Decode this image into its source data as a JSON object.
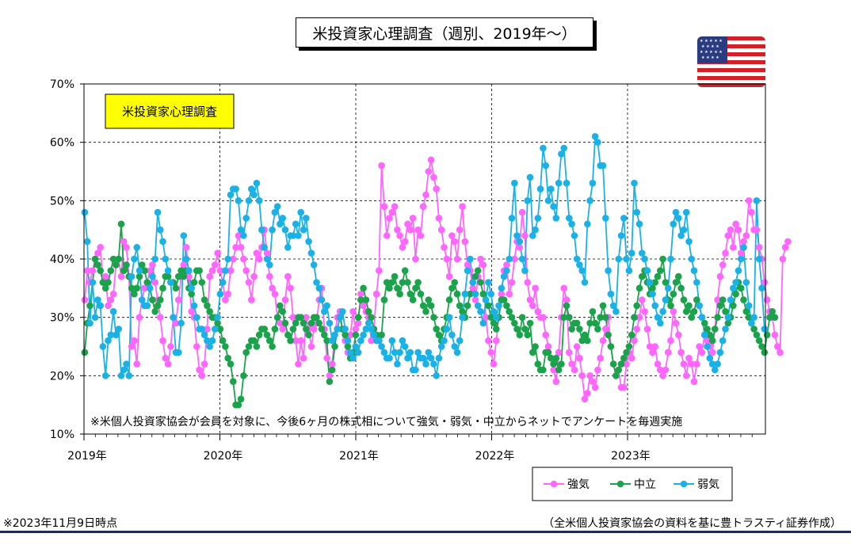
{
  "title": "米投資家心理調査（週別、2019年〜）",
  "inner_label": "米投資家心理調査",
  "chart_note": "※米個人投資家協会が会員を対象に、今後6ヶ月の株式相について強気・弱気・中立からネットでアンケートを毎週実施",
  "as_of": "※2023年11月9日時点",
  "source": "（全米個人投資家協会の資料を基に豊トラスティ証券作成）",
  "flag_icon": "us-flag-icon",
  "chart_data": {
    "type": "line",
    "title": "米投資家心理調査（週別、2019年〜）",
    "xlabel": "",
    "ylabel": "",
    "x_start": "2019-01-03",
    "x_end": "2023-11-09",
    "x_interval": "weekly",
    "x_ticks": [
      "2019年",
      "2020年",
      "2021年",
      "2022年",
      "2023年"
    ],
    "y_ticks": [
      "10%",
      "20%",
      "30%",
      "40%",
      "50%",
      "60%",
      "70%"
    ],
    "ylim": [
      10,
      70
    ],
    "grid": "dashed horizontal and vertical",
    "legend_position": "bottom-right",
    "series": [
      {
        "name": "強気",
        "color": "#ff66ff",
        "values": [
          33,
          38,
          36,
          38,
          40,
          41,
          42,
          36,
          37,
          32,
          33,
          34,
          39,
          40,
          37,
          43,
          42,
          37,
          25,
          26,
          22,
          30,
          33,
          35,
          36,
          38,
          39,
          36,
          33,
          30,
          26,
          23,
          22,
          25,
          30,
          29,
          33,
          37,
          39,
          42,
          37,
          31,
          30,
          25,
          21,
          20,
          22,
          28,
          37,
          38,
          39,
          41,
          38,
          36,
          33,
          34,
          38,
          40,
          42,
          44,
          42,
          40,
          38,
          36,
          33,
          37,
          41,
          40,
          42,
          45,
          41,
          37,
          35,
          34,
          30,
          29,
          28,
          33,
          37,
          35,
          30,
          26,
          22,
          26,
          23,
          30,
          28,
          25,
          28,
          29,
          33,
          35,
          28,
          23,
          20,
          22,
          27,
          30,
          31,
          28,
          26,
          24,
          27,
          31,
          28,
          29,
          34,
          32,
          31,
          30,
          26,
          28,
          34,
          38,
          56,
          49,
          44,
          47,
          48,
          49,
          45,
          44,
          42,
          43,
          46,
          45,
          47,
          40,
          45,
          44,
          49,
          51,
          55,
          57,
          54,
          52,
          47,
          45,
          42,
          40,
          37,
          44,
          43,
          40,
          45,
          49,
          43,
          39,
          38,
          35,
          33,
          37,
          40,
          39,
          30,
          26,
          24,
          22,
          26,
          30,
          34,
          38,
          39,
          34,
          36,
          40,
          43,
          42,
          48,
          44,
          36,
          33,
          32,
          35,
          31,
          30,
          30,
          27,
          25,
          23,
          21,
          19,
          24,
          30,
          35,
          33,
          24,
          22,
          21,
          25,
          23,
          20,
          16,
          17,
          20,
          19,
          18,
          21,
          23,
          26,
          28,
          30,
          25,
          22,
          20,
          21,
          18,
          18,
          22,
          24,
          23,
          26,
          28,
          30,
          33,
          31,
          28,
          25,
          24,
          25,
          22,
          21,
          20,
          21,
          24,
          26,
          31,
          29,
          27,
          24,
          22,
          20,
          23,
          22,
          19,
          22,
          25,
          24,
          27,
          26,
          25,
          24,
          28,
          33,
          37,
          39,
          41,
          44,
          45,
          42,
          46,
          45,
          41,
          43,
          44,
          50,
          48,
          45,
          45,
          42,
          40,
          36,
          33,
          31,
          30,
          27,
          25,
          24,
          40,
          42,
          43
        ]
      },
      {
        "name": "中立",
        "color": "#1aa34a",
        "values": [
          24,
          29,
          32,
          36,
          40,
          39,
          38,
          36,
          35,
          36,
          38,
          40,
          39,
          40,
          46,
          38,
          39,
          37,
          35,
          34,
          35,
          37,
          39,
          38,
          36,
          35,
          33,
          31,
          32,
          33,
          35,
          37,
          37,
          36,
          36,
          35,
          37,
          38,
          37,
          38,
          35,
          34,
          36,
          38,
          38,
          36,
          33,
          32,
          31,
          30,
          30,
          29,
          28,
          26,
          25,
          23,
          22,
          19,
          15,
          15,
          16,
          20,
          24,
          25,
          26,
          26,
          25,
          27,
          28,
          28,
          27,
          26,
          25,
          28,
          30,
          32,
          31,
          29,
          27,
          26,
          28,
          29,
          30,
          30,
          29,
          28,
          27,
          29,
          30,
          30,
          29,
          28,
          27,
          26,
          19,
          21,
          25,
          28,
          30,
          28,
          27,
          25,
          23,
          24,
          27,
          30,
          33,
          35,
          33,
          31,
          30,
          28,
          27,
          26,
          27,
          33,
          36,
          35,
          36,
          37,
          35,
          34,
          36,
          38,
          36,
          34,
          33,
          35,
          36,
          34,
          32,
          31,
          33,
          32,
          30,
          28,
          27,
          26,
          28,
          30,
          33,
          35,
          36,
          34,
          32,
          31,
          30,
          32,
          34,
          36,
          37,
          38,
          36,
          34,
          33,
          32,
          30,
          29,
          28,
          30,
          33,
          33,
          32,
          31,
          30,
          29,
          28,
          27,
          30,
          28,
          27,
          29,
          24,
          25,
          22,
          21,
          21,
          24,
          24,
          23,
          22,
          23,
          21,
          22,
          30,
          32,
          30,
          28,
          29,
          29,
          28,
          26,
          27,
          26,
          29,
          31,
          29,
          28,
          30,
          32,
          30,
          27,
          25,
          22,
          20,
          21,
          22,
          23,
          24,
          25,
          27,
          30,
          32,
          35,
          37,
          38,
          36,
          34,
          35,
          36,
          37,
          38,
          40,
          36,
          33,
          32,
          34,
          36,
          37,
          35,
          33,
          31,
          32,
          30,
          31,
          33,
          32,
          30,
          29,
          28,
          27,
          26,
          28,
          30,
          32,
          33,
          31,
          29,
          30,
          32,
          34,
          36,
          35,
          33,
          31,
          30,
          29,
          28,
          27,
          26,
          25,
          24,
          27,
          30,
          31,
          30
        ]
      },
      {
        "name": "弱気",
        "color": "#1ab2e6",
        "values": [
          48,
          43,
          29,
          36,
          30,
          33,
          32,
          25,
          20,
          26,
          27,
          31,
          27,
          28,
          20,
          21,
          22,
          20,
          37,
          40,
          42,
          38,
          33,
          32,
          32,
          35,
          37,
          40,
          48,
          45,
          43,
          40,
          38,
          36,
          30,
          24,
          24,
          29,
          44,
          40,
          38,
          35,
          32,
          30,
          28,
          28,
          27,
          26,
          25,
          26,
          28,
          30,
          34,
          36,
          38,
          40,
          51,
          52,
          52,
          50,
          45,
          44,
          47,
          50,
          52,
          51,
          53,
          50,
          45,
          42,
          40,
          39,
          45,
          48,
          49,
          46,
          47,
          45,
          42,
          44,
          44,
          46,
          44,
          48,
          45,
          47,
          43,
          41,
          39,
          36,
          35,
          33,
          31,
          32,
          29,
          26,
          27,
          28,
          30,
          31,
          28,
          26,
          24,
          23,
          25,
          24,
          26,
          27,
          28,
          29,
          28,
          27,
          26,
          26,
          25,
          24,
          23,
          23,
          26,
          24,
          22,
          24,
          26,
          25,
          23,
          24,
          21,
          21,
          24,
          23,
          23,
          22,
          24,
          23,
          22,
          20,
          23,
          25,
          26,
          28,
          30,
          27,
          25,
          24,
          26,
          30,
          34,
          38,
          40,
          36,
          34,
          32,
          31,
          29,
          33,
          36,
          34,
          31,
          30,
          32,
          35,
          37,
          38,
          40,
          47,
          53,
          44,
          43,
          40,
          38,
          50,
          54,
          44,
          45,
          47,
          52,
          59,
          56,
          50,
          52,
          49,
          47,
          53,
          58,
          59,
          53,
          47,
          46,
          44,
          40,
          39,
          38,
          36,
          46,
          50,
          53,
          61,
          60,
          56,
          56,
          47,
          38,
          34,
          32,
          31,
          40,
          44,
          47,
          40,
          38,
          41,
          53,
          48,
          46,
          41,
          40,
          38,
          36,
          34,
          32,
          30,
          29,
          31,
          33,
          35,
          40,
          46,
          48,
          47,
          44,
          45,
          48,
          43,
          40,
          38,
          36,
          32,
          30,
          27,
          25,
          23,
          22,
          21,
          22,
          24,
          26,
          28,
          30,
          33,
          35,
          36,
          38,
          40,
          42,
          36,
          32,
          29,
          30,
          50,
          40,
          35,
          28
        ]
      }
    ]
  }
}
